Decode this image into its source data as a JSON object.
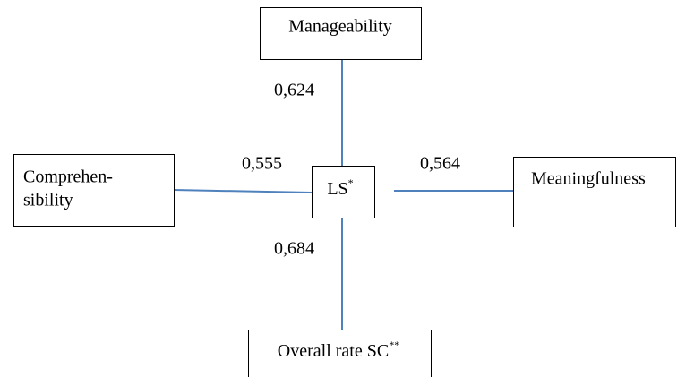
{
  "nodes": [
    {
      "label": "Manageability"
    },
    {
      "label": [
        "Comprehen-",
        "sibility"
      ]
    },
    {
      "label": "LS",
      "sup": "*"
    },
    {
      "label": "Meaningfulness"
    },
    {
      "label": "Overall rate SC",
      "sup": "**"
    }
  ],
  "edges": [
    {
      "label": "0,624"
    },
    {
      "label": "0,555"
    },
    {
      "label": "0,564"
    },
    {
      "label": "0,684"
    }
  ]
}
